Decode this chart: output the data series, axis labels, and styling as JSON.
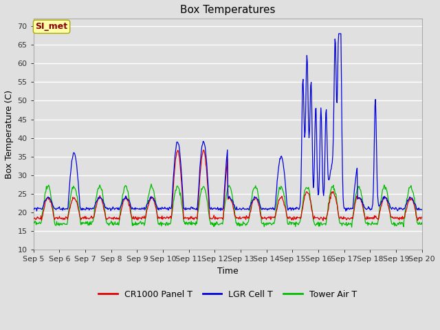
{
  "title": "Box Temperatures",
  "xlabel": "Time",
  "ylabel": "Box Temperature (C)",
  "ylim": [
    10,
    72
  ],
  "yticks": [
    10,
    15,
    20,
    25,
    30,
    35,
    40,
    45,
    50,
    55,
    60,
    65,
    70
  ],
  "background_color": "#e0e0e0",
  "plot_bg_color": "#e0e0e0",
  "watermark_text": "SI_met",
  "watermark_fg": "#8b0000",
  "watermark_bg": "#ffffaa",
  "legend_labels": [
    "CR1000 Panel T",
    "LGR Cell T",
    "Tower Air T"
  ],
  "legend_colors": [
    "#dd0000",
    "#0000dd",
    "#00bb00"
  ],
  "x_tick_labels": [
    "Sep 5",
    "Sep 6",
    "Sep 7",
    "Sep 8",
    "Sep 9",
    "Sep 10",
    "Sep 11",
    "Sep 12",
    "Sep 13",
    "Sep 14",
    "Sep 15",
    "Sep 16",
    "Sep 17",
    "Sep 18",
    "Sep 19",
    "Sep 20"
  ],
  "title_fontsize": 11,
  "axis_label_fontsize": 9,
  "tick_fontsize": 8
}
